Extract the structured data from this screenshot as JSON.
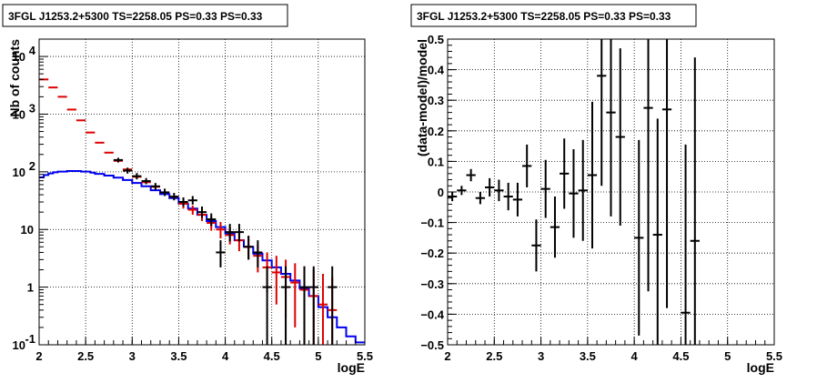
{
  "chart_data": [
    {
      "type": "line",
      "title": "3FGL J1253.2+5300 TS=2258.05 PS=0.33 PS=0.33",
      "xlabel": "logE",
      "ylabel": "Nb of counts",
      "xlim": [
        2,
        5.5
      ],
      "ylim": [
        0.1,
        20000
      ],
      "y_scale": "log",
      "grid": true,
      "x_ticks": [
        "2",
        "2.5",
        "3",
        "3.5",
        "4",
        "4.5",
        "5",
        "5.5"
      ],
      "y_ticks": [
        {
          "value": 0.1,
          "label": "10",
          "sup": "-1"
        },
        {
          "value": 1,
          "label": "1",
          "sup": ""
        },
        {
          "value": 10,
          "label": "10",
          "sup": ""
        },
        {
          "value": 100,
          "label": "10",
          "sup": "2"
        },
        {
          "value": 1000,
          "label": "10",
          "sup": "3"
        },
        {
          "value": 10000,
          "label": "10",
          "sup": "4"
        }
      ],
      "colors": {
        "data": "#000000",
        "model": "#dd0000",
        "background": "#0000ee"
      },
      "data_points": [
        {
          "x": 2.85,
          "y": 160,
          "lo": 145,
          "hi": 175
        },
        {
          "x": 2.95,
          "y": 105,
          "lo": 93,
          "hi": 118
        },
        {
          "x": 3.05,
          "y": 84,
          "lo": 74,
          "hi": 95
        },
        {
          "x": 3.15,
          "y": 69,
          "lo": 61,
          "hi": 78
        },
        {
          "x": 3.25,
          "y": 56,
          "lo": 49,
          "hi": 64
        },
        {
          "x": 3.35,
          "y": 44,
          "lo": 38,
          "hi": 51
        },
        {
          "x": 3.45,
          "y": 37,
          "lo": 32,
          "hi": 43
        },
        {
          "x": 3.55,
          "y": 30,
          "lo": 25,
          "hi": 36
        },
        {
          "x": 3.65,
          "y": 32,
          "lo": 27,
          "hi": 38
        },
        {
          "x": 3.75,
          "y": 20,
          "lo": 16,
          "hi": 25
        },
        {
          "x": 3.85,
          "y": 15,
          "lo": 11.5,
          "hi": 19
        },
        {
          "x": 3.95,
          "y": 4,
          "lo": 2.2,
          "hi": 6.5
        },
        {
          "x": 4.05,
          "y": 9,
          "lo": 6.2,
          "hi": 12.5
        },
        {
          "x": 4.15,
          "y": 9,
          "lo": 6.2,
          "hi": 12.5
        },
        {
          "x": 4.25,
          "y": 5,
          "lo": 3,
          "hi": 7.8
        },
        {
          "x": 4.35,
          "y": 4,
          "lo": 2.2,
          "hi": 6.5
        },
        {
          "x": 4.45,
          "y": 1,
          "lo": 0.1,
          "hi": 2.3
        },
        {
          "x": 4.65,
          "y": 1,
          "lo": 0.1,
          "hi": 2.3
        },
        {
          "x": 4.85,
          "y": 1,
          "lo": 0.1,
          "hi": 2.3
        },
        {
          "x": 4.95,
          "y": 1,
          "lo": 0.1,
          "hi": 2.3
        },
        {
          "x": 5.15,
          "y": 1,
          "lo": 0.1,
          "hi": 2.3
        }
      ],
      "model_points": [
        {
          "x": 2.05,
          "y": 4000
        },
        {
          "x": 2.15,
          "y": 2900
        },
        {
          "x": 2.25,
          "y": 2000
        },
        {
          "x": 2.35,
          "y": 1200
        },
        {
          "x": 2.45,
          "y": 780
        },
        {
          "x": 2.55,
          "y": 480
        },
        {
          "x": 2.65,
          "y": 320
        },
        {
          "x": 2.75,
          "y": 215
        },
        {
          "x": 2.85,
          "y": 155
        },
        {
          "x": 2.95,
          "y": 110
        },
        {
          "x": 3.05,
          "y": 82
        },
        {
          "x": 3.15,
          "y": 66
        },
        {
          "x": 3.25,
          "y": 55
        },
        {
          "x": 3.35,
          "y": 44
        },
        {
          "x": 3.45,
          "y": 37
        },
        {
          "x": 3.55,
          "y": 28,
          "lo": 23,
          "hi": 33
        },
        {
          "x": 3.65,
          "y": 22,
          "lo": 18,
          "hi": 26
        },
        {
          "x": 3.75,
          "y": 18,
          "lo": 14,
          "hi": 22
        },
        {
          "x": 3.85,
          "y": 13,
          "lo": 9.5,
          "hi": 17
        },
        {
          "x": 3.95,
          "y": 10,
          "lo": 7,
          "hi": 13.5
        },
        {
          "x": 4.05,
          "y": 8,
          "lo": 5.5,
          "hi": 11
        },
        {
          "x": 4.15,
          "y": 6.5,
          "lo": 4.2,
          "hi": 9
        },
        {
          "x": 4.25,
          "y": 5,
          "lo": 3,
          "hi": 7.5
        },
        {
          "x": 4.35,
          "y": 3.5,
          "lo": 1.8,
          "hi": 5.5
        },
        {
          "x": 4.45,
          "y": 2.2,
          "lo": 0.8,
          "hi": 4
        },
        {
          "x": 4.55,
          "y": 1.8,
          "lo": 0.5,
          "hi": 3.5
        },
        {
          "x": 4.65,
          "y": 1.5,
          "lo": 0.3,
          "hi": 3
        },
        {
          "x": 4.75,
          "y": 1.2,
          "lo": 0.2,
          "hi": 2.6
        },
        {
          "x": 4.85,
          "y": 0.9,
          "lo": 0.1,
          "hi": 2.3
        },
        {
          "x": 4.95,
          "y": 0.7,
          "lo": 0.1,
          "hi": 2
        },
        {
          "x": 5.05,
          "y": 0.5,
          "lo": 0.1,
          "hi": 1.7
        },
        {
          "x": 5.15,
          "y": 0.4,
          "lo": 0.1,
          "hi": 1.5
        }
      ],
      "background_steps": [
        {
          "x0": 2.0,
          "x1": 2.05,
          "y": 80
        },
        {
          "x0": 2.05,
          "x1": 2.1,
          "y": 88
        },
        {
          "x0": 2.1,
          "x1": 2.15,
          "y": 94
        },
        {
          "x0": 2.15,
          "x1": 2.2,
          "y": 98
        },
        {
          "x0": 2.2,
          "x1": 2.3,
          "y": 101
        },
        {
          "x0": 2.3,
          "x1": 2.45,
          "y": 103
        },
        {
          "x0": 2.45,
          "x1": 2.55,
          "y": 101
        },
        {
          "x0": 2.55,
          "x1": 2.6,
          "y": 97
        },
        {
          "x0": 2.6,
          "x1": 2.7,
          "y": 92
        },
        {
          "x0": 2.7,
          "x1": 2.8,
          "y": 86
        },
        {
          "x0": 2.8,
          "x1": 2.9,
          "y": 79
        },
        {
          "x0": 2.9,
          "x1": 3.0,
          "y": 72
        },
        {
          "x0": 3.0,
          "x1": 3.1,
          "y": 64
        },
        {
          "x0": 3.1,
          "x1": 3.2,
          "y": 56
        },
        {
          "x0": 3.2,
          "x1": 3.3,
          "y": 48
        },
        {
          "x0": 3.3,
          "x1": 3.4,
          "y": 41
        },
        {
          "x0": 3.4,
          "x1": 3.5,
          "y": 35
        },
        {
          "x0": 3.5,
          "x1": 3.6,
          "y": 28
        },
        {
          "x0": 3.6,
          "x1": 3.7,
          "y": 23
        },
        {
          "x0": 3.7,
          "x1": 3.8,
          "y": 18
        },
        {
          "x0": 3.8,
          "x1": 3.9,
          "y": 14
        },
        {
          "x0": 3.9,
          "x1": 4.0,
          "y": 11
        },
        {
          "x0": 4.0,
          "x1": 4.1,
          "y": 8.5
        },
        {
          "x0": 4.1,
          "x1": 4.2,
          "y": 6.5
        },
        {
          "x0": 4.2,
          "x1": 4.3,
          "y": 5
        },
        {
          "x0": 4.3,
          "x1": 4.4,
          "y": 3.8
        },
        {
          "x0": 4.4,
          "x1": 4.5,
          "y": 2.9
        },
        {
          "x0": 4.5,
          "x1": 4.6,
          "y": 2.2
        },
        {
          "x0": 4.6,
          "x1": 4.7,
          "y": 1.7
        },
        {
          "x0": 4.7,
          "x1": 4.8,
          "y": 1.3
        },
        {
          "x0": 4.8,
          "x1": 4.9,
          "y": 0.95
        },
        {
          "x0": 4.9,
          "x1": 5.0,
          "y": 0.7
        },
        {
          "x0": 5.0,
          "x1": 5.1,
          "y": 0.45
        },
        {
          "x0": 5.1,
          "x1": 5.2,
          "y": 0.3
        },
        {
          "x0": 5.2,
          "x1": 5.3,
          "y": 0.2
        },
        {
          "x0": 5.3,
          "x1": 5.4,
          "y": 0.14
        },
        {
          "x0": 5.4,
          "x1": 5.5,
          "y": 0.11
        }
      ]
    },
    {
      "type": "scatter",
      "title": "3FGL J1253.2+5300 TS=2258.05 PS=0.33 PS=0.33",
      "xlabel": "logE",
      "ylabel": "(data-model)/model",
      "xlim": [
        2,
        5.5
      ],
      "ylim": [
        -0.5,
        0.5
      ],
      "grid": true,
      "x_ticks": [
        "2",
        "2.5",
        "3",
        "3.5",
        "4",
        "4.5",
        "5",
        "5.5"
      ],
      "y_ticks": [
        {
          "value": -0.5,
          "label": "−0.5"
        },
        {
          "value": -0.4,
          "label": "−0.4"
        },
        {
          "value": -0.3,
          "label": "−0.3"
        },
        {
          "value": -0.2,
          "label": "−0.2"
        },
        {
          "value": -0.1,
          "label": "−0.1"
        },
        {
          "value": 0,
          "label": "0"
        },
        {
          "value": 0.1,
          "label": "0.1"
        },
        {
          "value": 0.2,
          "label": "0.2"
        },
        {
          "value": 0.3,
          "label": "0.3"
        },
        {
          "value": 0.4,
          "label": "0.4"
        },
        {
          "value": 0.5,
          "label": "0.5"
        }
      ],
      "points": [
        {
          "x": 2.05,
          "y": -0.015,
          "err": 0.015
        },
        {
          "x": 2.15,
          "y": 0.005,
          "err": 0.015
        },
        {
          "x": 2.25,
          "y": 0.055,
          "err": 0.02
        },
        {
          "x": 2.35,
          "y": -0.02,
          "err": 0.02
        },
        {
          "x": 2.45,
          "y": 0.015,
          "err": 0.03
        },
        {
          "x": 2.55,
          "y": 0.005,
          "err": 0.035
        },
        {
          "x": 2.65,
          "y": -0.015,
          "err": 0.045
        },
        {
          "x": 2.75,
          "y": -0.025,
          "err": 0.055
        },
        {
          "x": 2.85,
          "y": 0.085,
          "err": 0.07
        },
        {
          "x": 2.95,
          "y": -0.175,
          "err": 0.085
        },
        {
          "x": 3.05,
          "y": 0.01,
          "err": 0.095
        },
        {
          "x": 3.15,
          "y": -0.115,
          "err": 0.1
        },
        {
          "x": 3.25,
          "y": 0.06,
          "err": 0.115
        },
        {
          "x": 3.35,
          "y": -0.005,
          "err": 0.145
        },
        {
          "x": 3.45,
          "y": 0.005,
          "err": 0.165
        },
        {
          "x": 3.55,
          "y": 0.055,
          "err": 0.24
        },
        {
          "x": 3.65,
          "y": 0.38,
          "err": 0.36
        },
        {
          "x": 3.75,
          "y": 0.26,
          "err": 0.34
        },
        {
          "x": 3.85,
          "y": 0.18,
          "err": 0.29
        },
        {
          "x": 4.05,
          "y": -0.15,
          "err": 0.32
        },
        {
          "x": 4.15,
          "y": 0.275,
          "err": 0.6
        },
        {
          "x": 4.25,
          "y": -0.14,
          "err": 0.38
        },
        {
          "x": 4.35,
          "y": 0.27,
          "err": 0.65
        },
        {
          "x": 4.55,
          "y": -0.395,
          "err": 0.55
        },
        {
          "x": 4.65,
          "y": -0.16,
          "err": 0.6
        }
      ]
    }
  ]
}
